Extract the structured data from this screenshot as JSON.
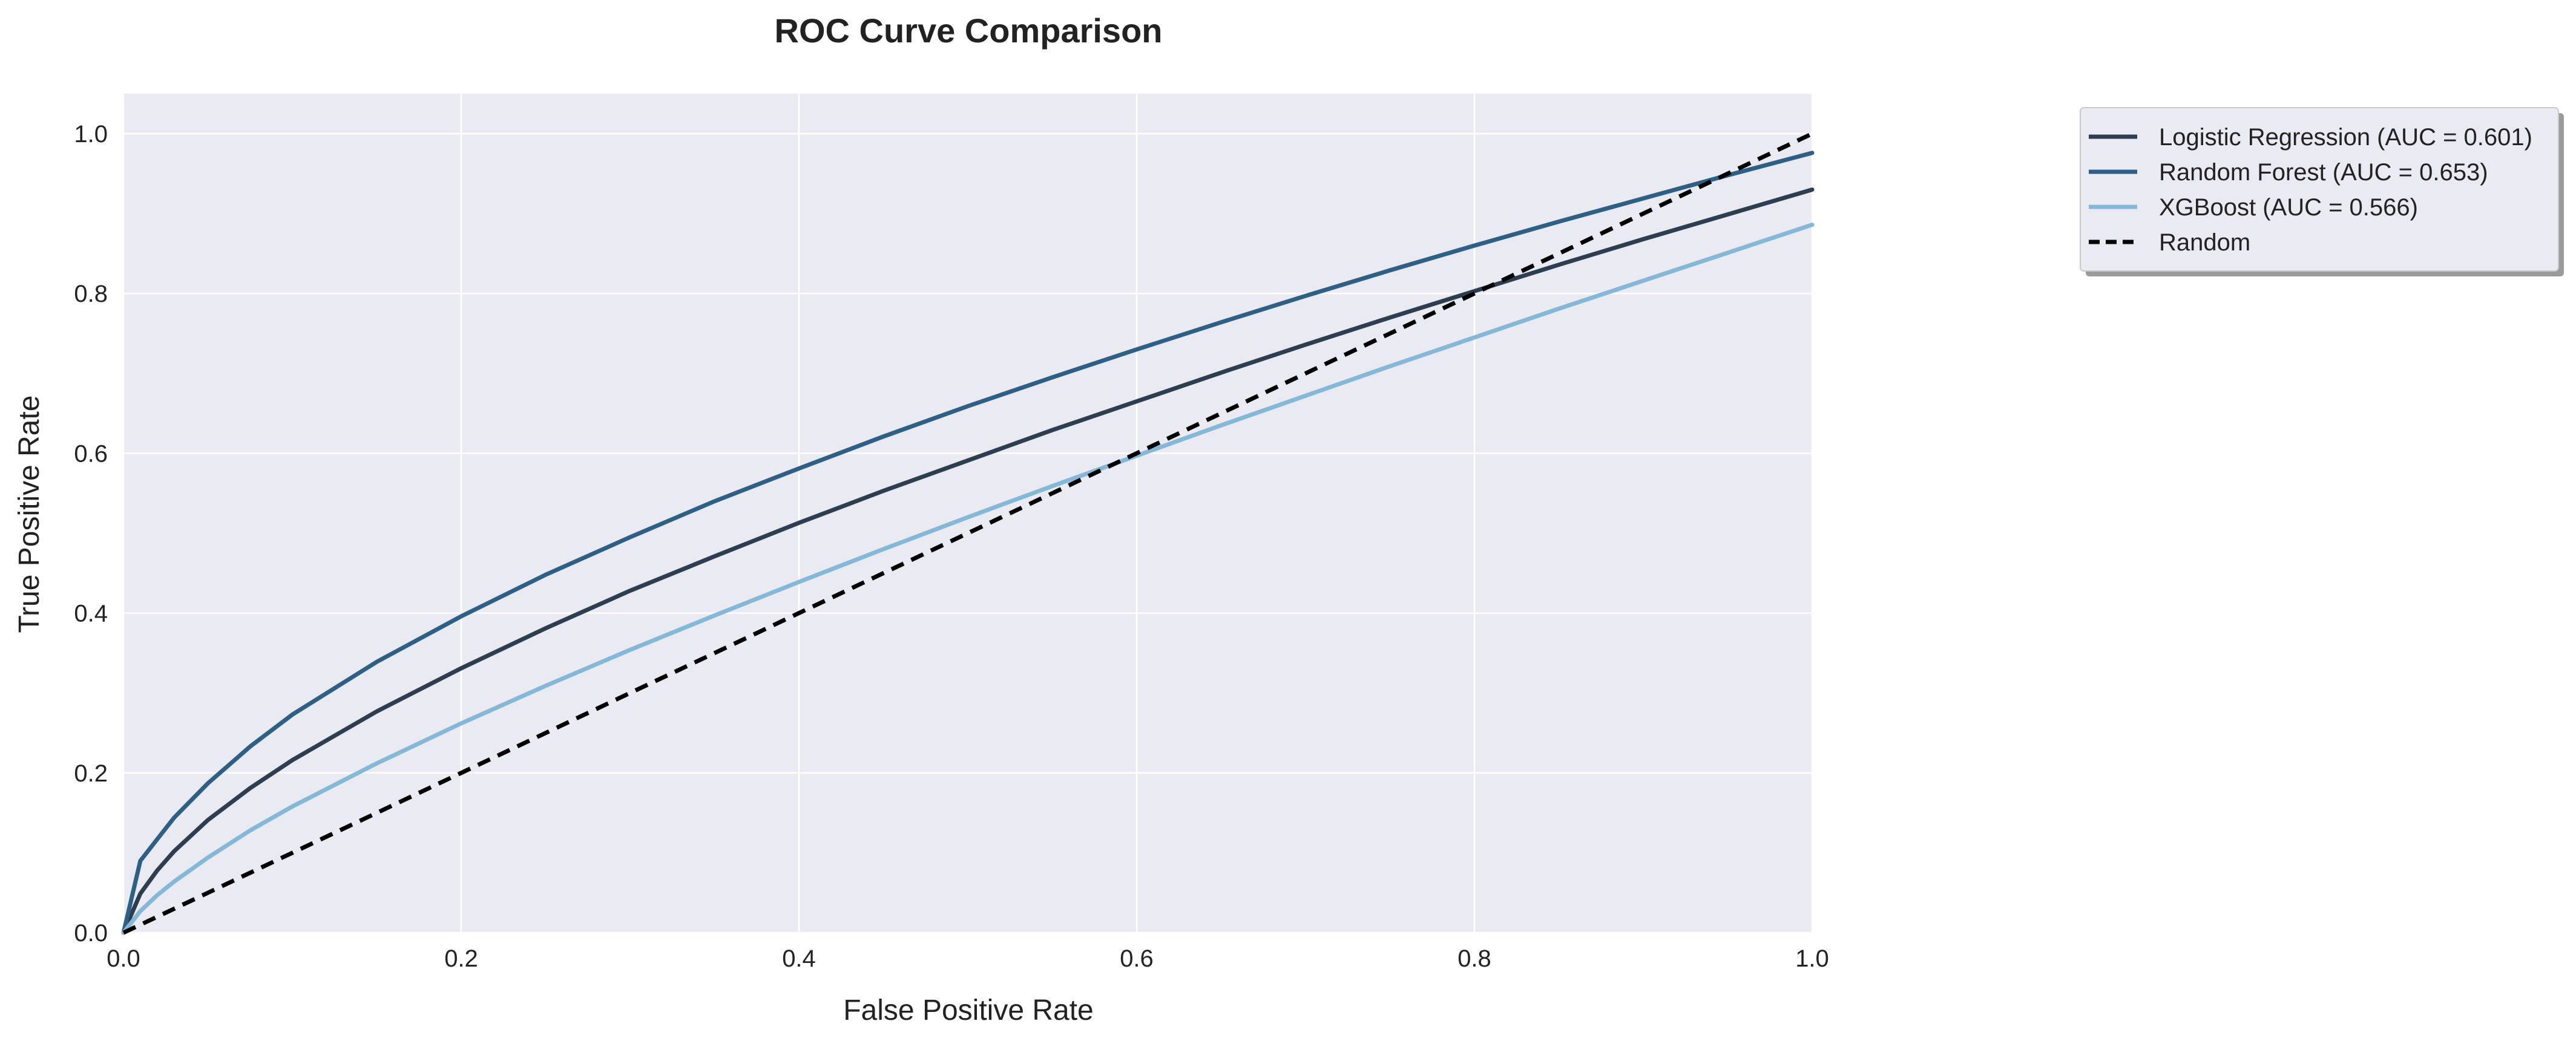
{
  "chart_data": {
    "type": "line",
    "title": "ROC Curve Comparison",
    "xlabel": "False Positive Rate",
    "ylabel": "True Positive Rate",
    "xlim": [
      0,
      1
    ],
    "ylim": [
      0,
      1.05
    ],
    "xticks": [
      "0.0",
      "0.2",
      "0.4",
      "0.6",
      "0.8",
      "1.0"
    ],
    "yticks": [
      "0.0",
      "0.2",
      "0.4",
      "0.6",
      "0.8",
      "1.0"
    ],
    "grid": true,
    "legend_position": "outside-top-right",
    "x": [
      0,
      0.01,
      0.02,
      0.03,
      0.05,
      0.075,
      0.1,
      0.15,
      0.2,
      0.25,
      0.3,
      0.35,
      0.4,
      0.45,
      0.5,
      0.55,
      0.6,
      0.65,
      0.7,
      0.75,
      0.8,
      0.85,
      0.9,
      0.95,
      1.0
    ],
    "series": [
      {
        "name": "Logistic Regression (AUC = 0.601)",
        "color": "#2c3e50",
        "dash": "solid",
        "values": [
          0.0,
          0.049,
          0.078,
          0.102,
          0.141,
          0.181,
          0.216,
          0.277,
          0.331,
          0.381,
          0.428,
          0.471,
          0.513,
          0.553,
          0.591,
          0.629,
          0.665,
          0.701,
          0.736,
          0.77,
          0.803,
          0.836,
          0.868,
          0.899,
          0.93
        ]
      },
      {
        "name": "Random Forest (AUC = 0.653)",
        "color": "#2e5f85",
        "dash": "solid",
        "values": [
          0.0,
          0.09,
          0.117,
          0.144,
          0.187,
          0.233,
          0.273,
          0.339,
          0.396,
          0.448,
          0.495,
          0.54,
          0.581,
          0.621,
          0.659,
          0.695,
          0.73,
          0.764,
          0.797,
          0.829,
          0.86,
          0.89,
          0.919,
          0.948,
          0.976
        ]
      },
      {
        "name": "XGBoost (AUC = 0.566)",
        "color": "#85b8d6",
        "dash": "solid",
        "values": [
          0.0,
          0.027,
          0.047,
          0.064,
          0.094,
          0.128,
          0.158,
          0.212,
          0.262,
          0.309,
          0.354,
          0.397,
          0.439,
          0.48,
          0.52,
          0.559,
          0.597,
          0.635,
          0.672,
          0.709,
          0.745,
          0.781,
          0.816,
          0.851,
          0.886
        ]
      },
      {
        "name": "Random",
        "color": "#000000",
        "dash": "dashed",
        "values": [
          0,
          0.01,
          0.02,
          0.03,
          0.05,
          0.075,
          0.1,
          0.15,
          0.2,
          0.25,
          0.3,
          0.35,
          0.4,
          0.45,
          0.5,
          0.55,
          0.6,
          0.65,
          0.7,
          0.75,
          0.8,
          0.85,
          0.9,
          0.95,
          1.0
        ]
      }
    ]
  },
  "colors": {
    "plot_background": "#eaeaf2",
    "grid": "#ffffff",
    "legend_background": "#eaeaf2"
  }
}
